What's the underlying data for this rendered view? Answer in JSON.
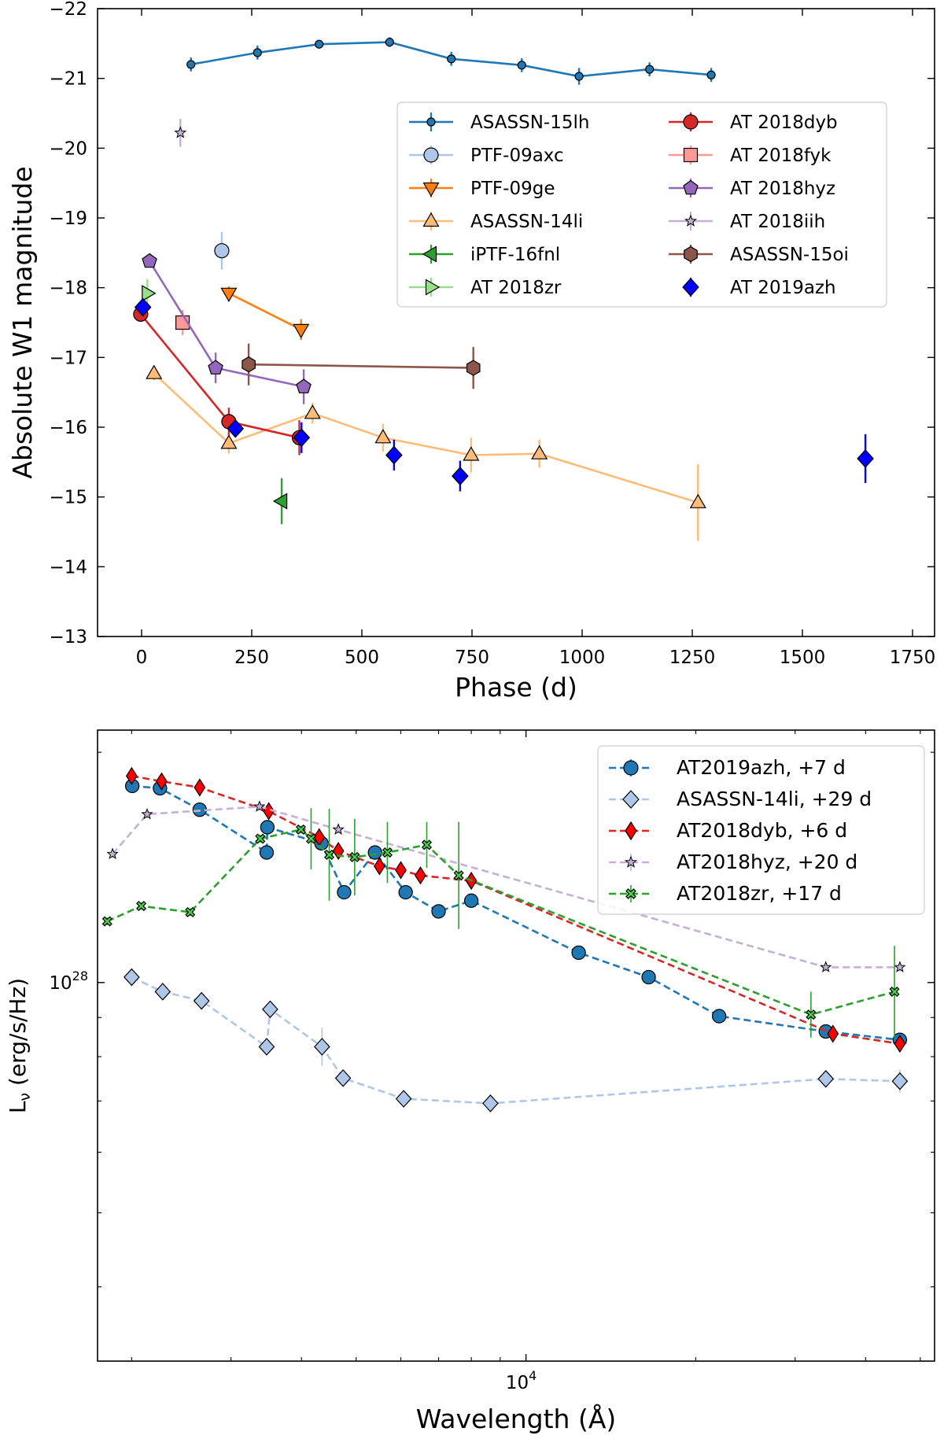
{
  "chart_data": [
    {
      "type": "line",
      "xlabel": "Phase (d)",
      "ylabel": "Absolute W1 magnitude",
      "xlim": [
        -100,
        1800
      ],
      "ylim": [
        -22,
        -13
      ],
      "y_inverted": true,
      "xticks": [
        0,
        250,
        500,
        750,
        1000,
        1250,
        1500,
        1750
      ],
      "yticks": [
        -22,
        -21,
        -20,
        -19,
        -18,
        -17,
        -16,
        -15,
        -14,
        -13
      ],
      "xtick_labels": [
        "0",
        "250",
        "500",
        "750",
        "1000",
        "1250",
        "1500",
        "1750"
      ],
      "ytick_labels": [
        "−22",
        "−21",
        "−20",
        "−19",
        "−18",
        "−17",
        "−16",
        "−15",
        "−14",
        "−13"
      ],
      "legend_position": "upper-right",
      "series": [
        {
          "name": "ASASSN-15lh",
          "color": "#1f77b4",
          "fill": "#1f77b4",
          "marker": "small-circle",
          "line": true,
          "x": [
            112,
            263,
            403,
            563,
            703,
            863,
            993,
            1153,
            1293
          ],
          "y": [
            -21.2,
            -21.37,
            -21.49,
            -21.52,
            -21.28,
            -21.19,
            -21.03,
            -21.13,
            -21.05
          ],
          "err": [
            0.1,
            0.1,
            0.06,
            0.07,
            0.1,
            0.1,
            0.12,
            0.1,
            0.1
          ]
        },
        {
          "name": "PTF-09axc",
          "color": "#aec7e8",
          "fill": "#aec7e8",
          "marker": "circle",
          "line": true,
          "x": [
            182
          ],
          "y": [
            -18.53
          ],
          "err": [
            0.27
          ]
        },
        {
          "name": "PTF-09ge",
          "color": "#ff7f0e",
          "fill": "#ff7f0e",
          "marker": "triangle-down",
          "line": true,
          "x": [
            198,
            362
          ],
          "y": [
            -17.92,
            -17.4
          ],
          "err": [
            0.1,
            0.15
          ]
        },
        {
          "name": "ASASSN-14li",
          "color": "#ffbb78",
          "fill": "#ffbb78",
          "marker": "triangle-up",
          "line": true,
          "x": [
            28,
            198,
            388,
            548,
            748,
            903,
            1263
          ],
          "y": [
            -16.77,
            -15.77,
            -16.2,
            -15.85,
            -15.6,
            -15.62,
            -14.92
          ],
          "err": [
            0.1,
            0.15,
            0.15,
            0.2,
            0.25,
            0.2,
            0.55
          ]
        },
        {
          "name": "iPTF-16fnl",
          "color": "#2ca02c",
          "fill": "#2ca02c",
          "marker": "triangle-left",
          "line": true,
          "x": [
            318
          ],
          "y": [
            -14.94
          ],
          "err": [
            0.33
          ]
        },
        {
          "name": "AT 2018zr",
          "color": "#98df8a",
          "fill": "#98df8a",
          "marker": "triangle-right",
          "line": true,
          "x": [
            13
          ],
          "y": [
            -17.92
          ],
          "err": [
            0.2
          ]
        },
        {
          "name": "AT 2018dyb",
          "color": "#d62728",
          "fill": "#d62728",
          "marker": "circle",
          "line": true,
          "x": [
            -2,
            198,
            358
          ],
          "y": [
            -17.62,
            -16.08,
            -15.85
          ],
          "err": [
            0.08,
            0.2,
            0.25
          ]
        },
        {
          "name": "AT 2018fyk",
          "color": "#ff9896",
          "fill": "#ff9896",
          "marker": "square",
          "line": true,
          "x": [
            93
          ],
          "y": [
            -17.5
          ],
          "err": [
            0.18
          ]
        },
        {
          "name": "AT 2018hyz",
          "color": "#9467bd",
          "fill": "#9467bd",
          "marker": "pentagon",
          "line": true,
          "x": [
            18,
            168,
            368
          ],
          "y": [
            -18.38,
            -16.85,
            -16.58
          ],
          "err": [
            0.08,
            0.22,
            0.25
          ]
        },
        {
          "name": "AT 2018iih",
          "color": "#c5b0d5",
          "fill": "#c5b0d5",
          "marker": "star",
          "line": true,
          "x": [
            88
          ],
          "y": [
            -20.22
          ],
          "err": [
            0.2
          ]
        },
        {
          "name": "ASASSN-15oi",
          "color": "#8c564b",
          "fill": "#8c564b",
          "marker": "hexagon",
          "line": true,
          "x": [
            243,
            753
          ],
          "y": [
            -16.9,
            -16.85
          ],
          "err": [
            0.3,
            0.3
          ]
        },
        {
          "name": "AT 2019azh",
          "color": "#0000ff",
          "fill": "#0000ff",
          "marker": "diamond",
          "line": false,
          "x": [
            3,
            213,
            363,
            573,
            723,
            1643
          ],
          "y": [
            -17.72,
            -15.98,
            -15.85,
            -15.6,
            -15.3,
            -15.55
          ],
          "err": [
            0.12,
            0.12,
            0.22,
            0.22,
            0.22,
            0.35
          ]
        }
      ]
    },
    {
      "type": "line",
      "xlabel": "Wavelength (Å)",
      "ylabel_main": "L",
      "ylabel_sub": "ν",
      "ylabel_rest": "  (erg/s/Hz)",
      "x_scale": "log",
      "y_scale": "log",
      "xlim": [
        1740,
        53000
      ],
      "ylim_log10": [
        27.505,
        28.33
      ],
      "xtick_labels": [
        {
          "base": "10",
          "exp": "4",
          "value": 10000
        }
      ],
      "ytick_labels": [
        {
          "base": "10",
          "exp": "28",
          "value": 1e+28
        }
      ],
      "legend_position": "upper-right",
      "series": [
        {
          "name": "AT2019azh, +7 d",
          "color": "#1f77b4",
          "fill": "#1f77b4",
          "marker": "circle",
          "x": [
            2005,
            2245,
            2640,
            3470,
            3480,
            4340,
            4760,
            5400,
            6120,
            7000,
            8000,
            12400,
            16500,
            22000,
            34000,
            46000
          ],
          "logL": [
            28.257,
            28.254,
            28.226,
            28.17,
            28.203,
            28.182,
            28.118,
            28.17,
            28.118,
            28.093,
            28.107,
            28.039,
            28.007,
            27.956,
            27.936,
            27.925
          ],
          "err": [
            0.005,
            0.005,
            0.005,
            0.005,
            0.005,
            0.005,
            0.005,
            0.005,
            0.005,
            0.005,
            0.005,
            0.005,
            0.005,
            0.005,
            0.005,
            0.005
          ]
        },
        {
          "name": "ASASSN-14li, +29 d",
          "color": "#aec7e8",
          "fill": "#aec7e8",
          "marker": "diamond",
          "x": [
            2000,
            2270,
            2660,
            3470,
            3520,
            4350,
            4740,
            6070,
            8650,
            34000,
            46000
          ],
          "logL": [
            28.007,
            27.988,
            27.976,
            27.916,
            27.965,
            27.916,
            27.875,
            27.848,
            27.842,
            27.874,
            27.871
          ],
          "err": [
            0.005,
            0.005,
            0.005,
            0.01,
            0.005,
            0.025,
            0.005,
            0.005,
            0.005,
            0.01,
            0.015
          ]
        },
        {
          "name": "AT2018dyb, +6 d",
          "color": "#d62728",
          "fill": "#ff0000",
          "marker": "diamond-thin",
          "x": [
            2000,
            2260,
            2640,
            3500,
            4300,
            4650,
            5500,
            6000,
            6500,
            8000,
            35000,
            46000
          ],
          "logL": [
            28.27,
            28.263,
            28.255,
            28.224,
            28.19,
            28.172,
            28.152,
            28.147,
            28.14,
            28.133,
            27.933,
            27.92
          ],
          "err": [
            0.01,
            0.01,
            0.01,
            0.01,
            0.01,
            0.01,
            0.01,
            0.01,
            0.01,
            0.01,
            0.01,
            0.01
          ]
        },
        {
          "name": "AT2018hyz, +20 d",
          "color": "#c5b0d5",
          "fill": "#c5b0d5",
          "marker": "star",
          "x": [
            1850,
            2130,
            3370,
            4650,
            34000,
            46000
          ],
          "logL": [
            28.168,
            28.22,
            28.23,
            28.2,
            28.02,
            28.02
          ],
          "err": [
            0.005,
            0.005,
            0.005,
            0.005,
            0.005,
            0.005
          ]
        },
        {
          "name": "AT2018zr, +17 d",
          "color": "#2ca02c",
          "fill": "#4cd04c",
          "marker": "x",
          "x": [
            1810,
            2080,
            2540,
            3380,
            3990,
            4160,
            4480,
            4970,
            5680,
            6670,
            7600,
            32000,
            45000
          ],
          "logL": [
            28.08,
            28.1,
            28.092,
            28.188,
            28.2,
            28.188,
            28.167,
            28.164,
            28.17,
            28.18,
            28.14,
            27.958,
            27.988
          ],
          "err": [
            0.005,
            0.005,
            0.005,
            0.005,
            0.005,
            0.04,
            0.06,
            0.05,
            0.04,
            0.03,
            0.07,
            0.03,
            0.06
          ]
        }
      ]
    }
  ]
}
